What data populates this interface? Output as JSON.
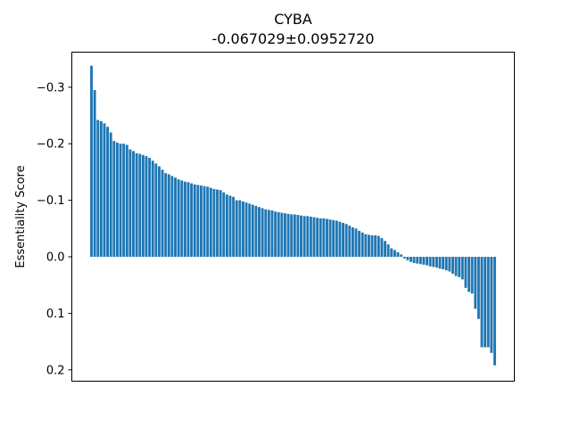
{
  "chart_data": {
    "type": "bar",
    "title": "CYBA",
    "subtitle": "-0.067029±0.0952720",
    "xlabel": "",
    "ylabel": "Essentiality Score",
    "y_inverted": true,
    "ylim": [
      0.22,
      -0.36
    ],
    "yticks": [
      -0.3,
      -0.2,
      -0.1,
      0.0,
      0.1,
      0.2
    ],
    "ytick_labels": [
      "−0.3",
      "−0.2",
      "−0.1",
      "0.0",
      "0.1",
      "0.2"
    ],
    "grid": false,
    "bar_color": "#1f77b4",
    "values": [
      -0.338,
      -0.295,
      -0.242,
      -0.24,
      -0.236,
      -0.23,
      -0.22,
      -0.205,
      -0.202,
      -0.2,
      -0.2,
      -0.198,
      -0.19,
      -0.187,
      -0.183,
      -0.182,
      -0.18,
      -0.178,
      -0.175,
      -0.17,
      -0.165,
      -0.16,
      -0.154,
      -0.148,
      -0.146,
      -0.143,
      -0.14,
      -0.137,
      -0.135,
      -0.133,
      -0.132,
      -0.13,
      -0.128,
      -0.127,
      -0.126,
      -0.125,
      -0.124,
      -0.122,
      -0.12,
      -0.119,
      -0.118,
      -0.114,
      -0.11,
      -0.108,
      -0.106,
      -0.1,
      -0.1,
      -0.098,
      -0.096,
      -0.094,
      -0.092,
      -0.09,
      -0.088,
      -0.086,
      -0.084,
      -0.083,
      -0.082,
      -0.08,
      -0.079,
      -0.078,
      -0.077,
      -0.076,
      -0.075,
      -0.075,
      -0.074,
      -0.073,
      -0.072,
      -0.072,
      -0.071,
      -0.07,
      -0.069,
      -0.068,
      -0.068,
      -0.067,
      -0.066,
      -0.065,
      -0.064,
      -0.062,
      -0.06,
      -0.058,
      -0.055,
      -0.052,
      -0.05,
      -0.046,
      -0.043,
      -0.04,
      -0.039,
      -0.038,
      -0.038,
      -0.037,
      -0.033,
      -0.028,
      -0.022,
      -0.015,
      -0.012,
      -0.008,
      -0.004,
      0.003,
      0.006,
      0.009,
      0.011,
      0.012,
      0.013,
      0.014,
      0.015,
      0.017,
      0.018,
      0.019,
      0.021,
      0.022,
      0.024,
      0.026,
      0.03,
      0.034,
      0.036,
      0.04,
      0.055,
      0.062,
      0.065,
      0.092,
      0.11,
      0.16,
      0.16,
      0.16,
      0.17,
      0.192
    ]
  }
}
